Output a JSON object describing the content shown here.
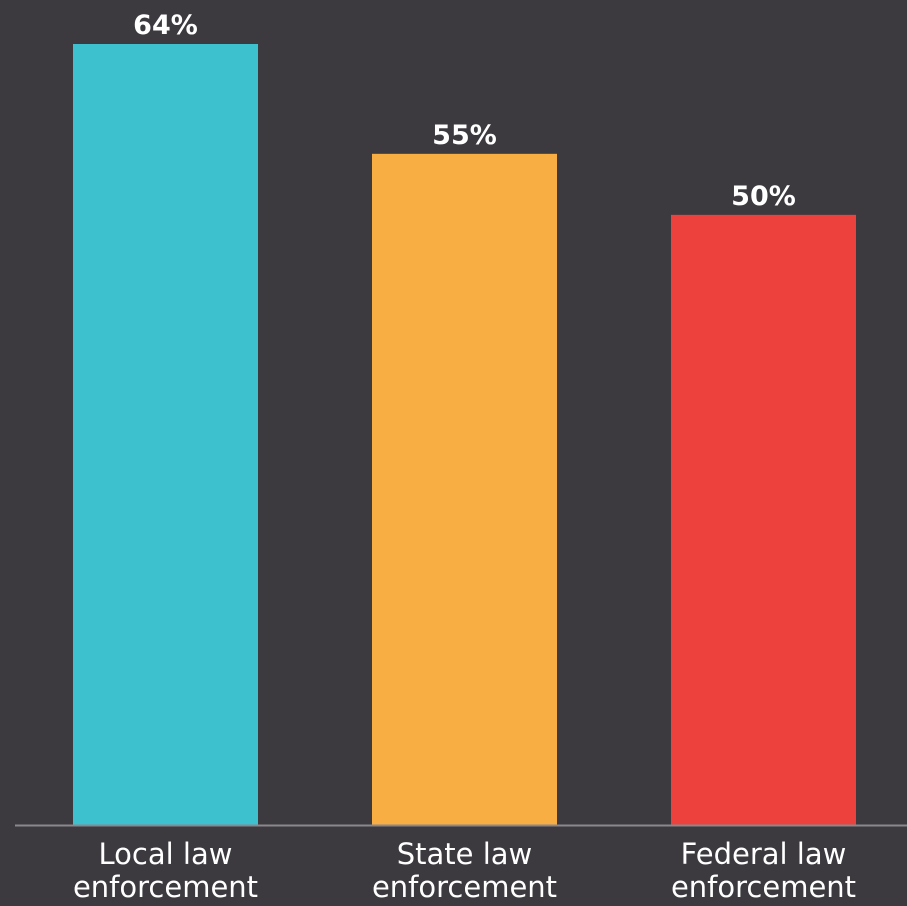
{
  "chart_data": {
    "type": "bar",
    "categories": [
      "Local law enforcement",
      "State law enforcement",
      "Federal law enforcement"
    ],
    "values": [
      64,
      55,
      50
    ],
    "value_labels": [
      "64%",
      "55%",
      "50%"
    ],
    "colors": [
      "#3dc1cf",
      "#f9ae43",
      "#ec413d"
    ]
  }
}
